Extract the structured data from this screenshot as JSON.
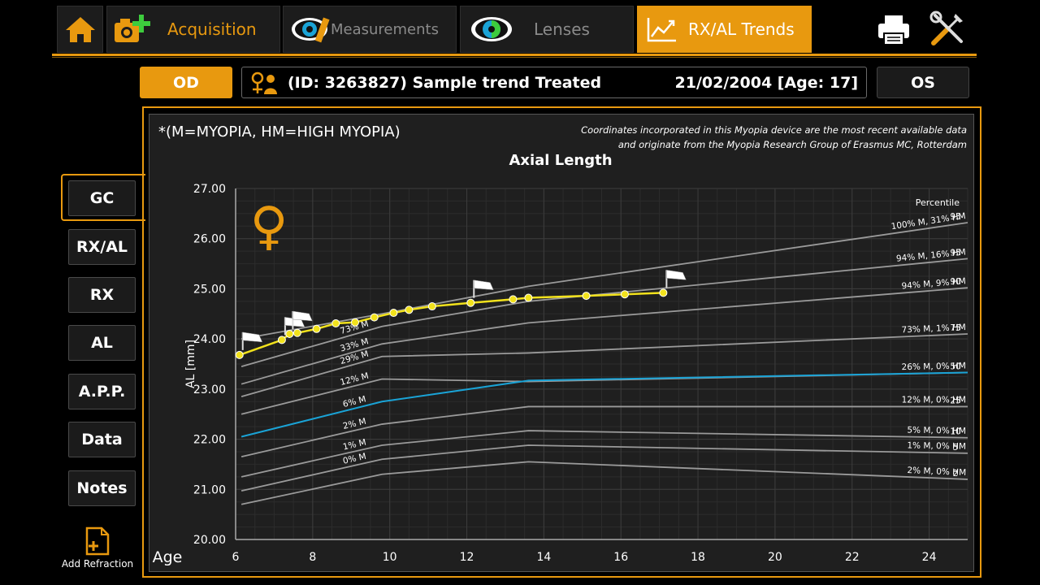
{
  "toolbar": {
    "tabs": [
      {
        "label": "Acquisition",
        "icon": "camera-plus-icon",
        "active": false
      },
      {
        "label": "Measurements",
        "icon": "eye-ruler-icon",
        "active": false
      },
      {
        "label": "Lenses",
        "icon": "eye-lens-icon",
        "active": false
      },
      {
        "label": "RX/AL Trends",
        "icon": "trend-chart-icon",
        "active": true
      }
    ],
    "home_icon": "home-icon",
    "print_icon": "printer-icon",
    "tools_icon": "tools-icon",
    "accent_color": "#e8990f"
  },
  "patient": {
    "od_label": "OD",
    "os_label": "OS",
    "name": "(ID: 3263827) Sample trend Treated",
    "dob": "21/02/2004 [Age: 17]",
    "icon": "patients-icon"
  },
  "sidebar": {
    "items": [
      "GC",
      "RX/AL",
      "RX",
      "AL",
      "A.P.P.",
      "Data",
      "Notes"
    ],
    "selected": "GC",
    "add_refraction": "Add Refraction"
  },
  "chart_header": {
    "legend_note": "*(M=MYOPIA, HM=HIGH MYOPIA)",
    "credit_line1": "Coordinates incorporated in this Myopia device are the most recent available data",
    "credit_line2": "and  originate from the Myopia Research Group of Erasmus MC, Rotterdam"
  },
  "chart_data": {
    "type": "line",
    "title": "Axial Length",
    "xlabel": "Age",
    "ylabel": "AL [mm]",
    "xlim": [
      6,
      25
    ],
    "ylim": [
      20,
      27
    ],
    "x_ticks": [
      "6",
      "8",
      "10",
      "12",
      "14",
      "16",
      "18",
      "20",
      "22",
      "24"
    ],
    "y_ticks": [
      "20.00",
      "21.00",
      "22.00",
      "23.00",
      "24.00",
      "25.00",
      "26.00",
      "27.00"
    ],
    "percentile_header": "Percentile",
    "gender_symbol": "♀",
    "curves": [
      {
        "percentile": "95",
        "label": "100% M, 31% HM",
        "inline": "",
        "points": [
          [
            6.15,
            24.0
          ],
          [
            9.8,
            24.5
          ],
          [
            13.6,
            25.05
          ],
          [
            25,
            26.32
          ]
        ],
        "color": "#9a9a9a"
      },
      {
        "percentile": "95",
        "label": "94% M, 16% HM",
        "inline": "73% M",
        "points": [
          [
            6.15,
            23.45
          ],
          [
            9.8,
            24.25
          ],
          [
            13.6,
            24.75
          ],
          [
            25,
            25.6
          ]
        ],
        "color": "#9a9a9a"
      },
      {
        "percentile": "90",
        "label": "94% M, 9% HM",
        "inline": "33% M",
        "points": [
          [
            6.15,
            23.1
          ],
          [
            9.8,
            23.9
          ],
          [
            13.6,
            24.32
          ],
          [
            25,
            25.02
          ]
        ],
        "color": "#9a9a9a"
      },
      {
        "percentile": "75",
        "label": "73% M, 1% HM",
        "inline": "29% M",
        "points": [
          [
            6.15,
            22.85
          ],
          [
            9.8,
            23.65
          ],
          [
            13.6,
            23.72
          ],
          [
            25,
            24.1
          ]
        ],
        "color": "#9a9a9a"
      },
      {
        "percentile": "50",
        "label": "26% M, 0% HM",
        "inline": "12% M",
        "points": [
          [
            6.15,
            22.5
          ],
          [
            9.8,
            23.2
          ],
          [
            13.6,
            23.15
          ],
          [
            25,
            23.33
          ]
        ],
        "color": "#9a9a9a"
      },
      {
        "percentile": "50-blue",
        "label": "",
        "inline": "6% M",
        "points": [
          [
            6.15,
            22.05
          ],
          [
            9.8,
            22.75
          ],
          [
            13.6,
            23.17
          ],
          [
            25,
            23.33
          ]
        ],
        "color": "#1aa3d6"
      },
      {
        "percentile": "25",
        "label": "12% M, 0% HM",
        "inline": "2% M",
        "points": [
          [
            6.15,
            21.65
          ],
          [
            9.8,
            22.3
          ],
          [
            13.6,
            22.65
          ],
          [
            25,
            22.65
          ]
        ],
        "color": "#9a9a9a"
      },
      {
        "percentile": "10",
        "label": "5% M, 0% HM",
        "inline": "1% M",
        "points": [
          [
            6.15,
            21.25
          ],
          [
            9.8,
            21.88
          ],
          [
            13.6,
            22.17
          ],
          [
            25,
            22.03
          ]
        ],
        "color": "#9a9a9a"
      },
      {
        "percentile": "5",
        "label": "1% M, 0% HM",
        "inline": "0% M",
        "points": [
          [
            6.15,
            20.97
          ],
          [
            9.8,
            21.6
          ],
          [
            13.6,
            21.88
          ],
          [
            25,
            21.72
          ]
        ],
        "color": "#9a9a9a"
      },
      {
        "percentile": "2",
        "label": "2% M, 0% HM",
        "inline": "",
        "points": [
          [
            6.15,
            20.7
          ],
          [
            9.8,
            21.3
          ],
          [
            13.6,
            21.55
          ],
          [
            25,
            21.2
          ]
        ],
        "color": "#9a9a9a"
      }
    ],
    "patient_series": {
      "name": "",
      "color": "#f2e21c",
      "points": [
        [
          6.1,
          23.68
        ],
        [
          7.2,
          23.98
        ],
        [
          7.4,
          24.1
        ],
        [
          7.6,
          24.12
        ],
        [
          8.1,
          24.2
        ],
        [
          8.6,
          24.31
        ],
        [
          9.1,
          24.33
        ],
        [
          9.6,
          24.43
        ],
        [
          10.1,
          24.52
        ],
        [
          10.5,
          24.58
        ],
        [
          11.1,
          24.65
        ],
        [
          12.1,
          24.72
        ],
        [
          13.2,
          24.79
        ],
        [
          13.6,
          24.82
        ],
        [
          15.1,
          24.86
        ],
        [
          16.1,
          24.89
        ],
        [
          17.1,
          24.92
        ]
      ],
      "flag_ages": [
        6.1,
        7.2,
        7.4,
        12.1,
        17.1
      ]
    }
  }
}
